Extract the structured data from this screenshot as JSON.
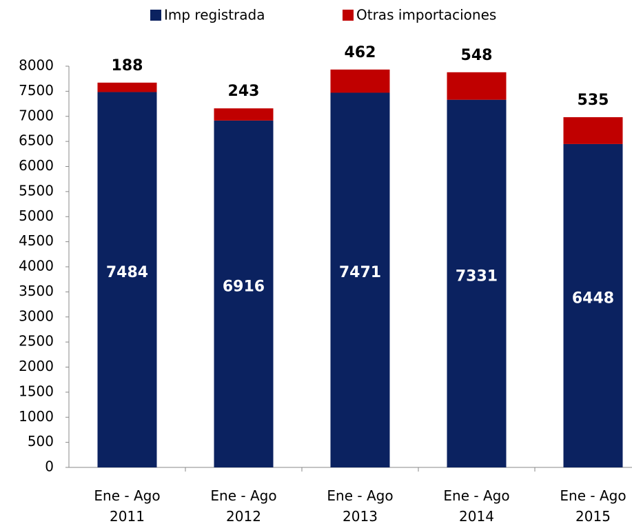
{
  "chart_data": {
    "type": "stacked_bar",
    "categories": [
      "Ene - Ago 2011",
      "Ene - Ago 2012",
      "Ene - Ago 2013",
      "Ene - Ago 2014",
      "Ene - Ago 2015"
    ],
    "series": [
      {
        "name": "Imp registrada",
        "color": "#0b2260",
        "values": [
          7484,
          6916,
          7471,
          7331,
          6448
        ]
      },
      {
        "name": "Otras importaciones",
        "color": "#c00000",
        "values": [
          188,
          243,
          462,
          548,
          535
        ]
      }
    ],
    "ylim": [
      0,
      8000
    ],
    "yticks": [
      0,
      500,
      1000,
      1500,
      2000,
      2500,
      3000,
      3500,
      4000,
      4500,
      5000,
      5500,
      6000,
      6500,
      7000,
      7500,
      8000
    ],
    "legend": "top"
  }
}
